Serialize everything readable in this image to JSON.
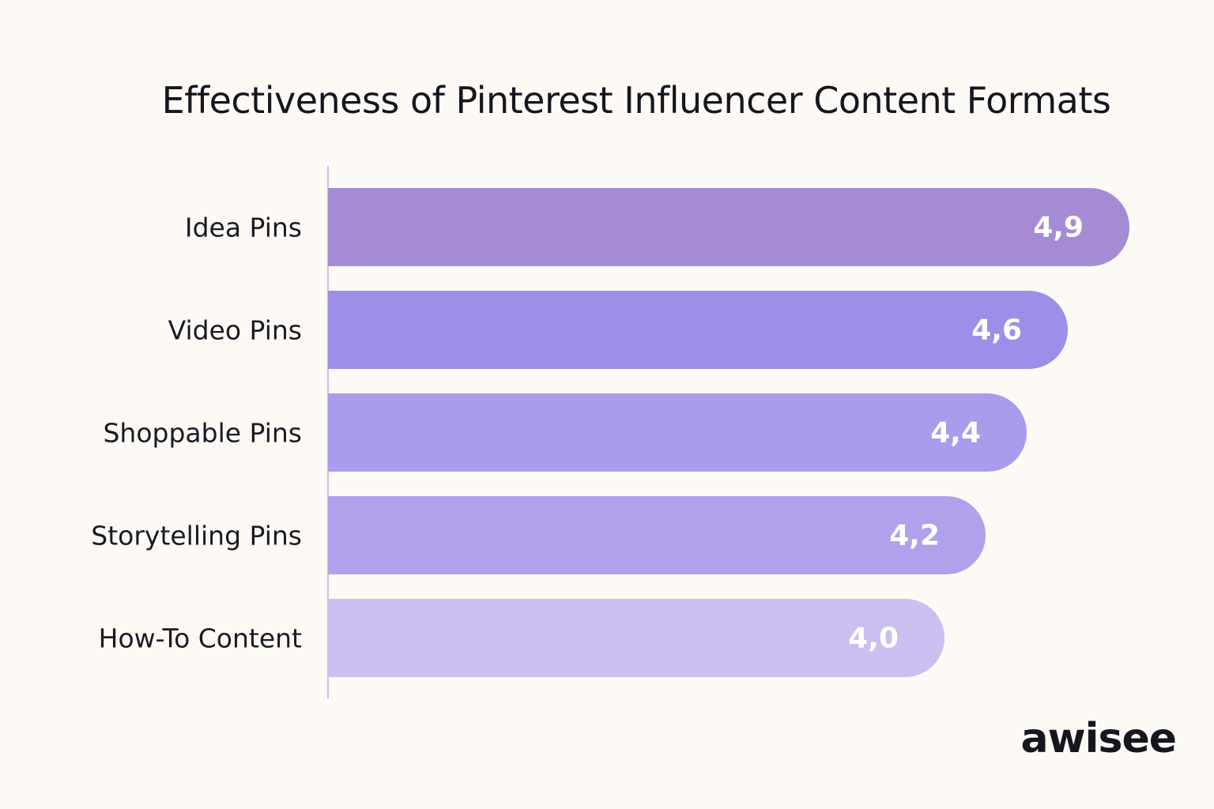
{
  "chart_data": {
    "type": "bar",
    "orientation": "horizontal",
    "title": "Effectiveness of Pinterest Influencer Content Formats",
    "categories": [
      "Idea Pins",
      "Video Pins",
      "Shoppable Pins",
      "Storytelling Pins",
      "How-To Content"
    ],
    "values": [
      4.9,
      4.6,
      4.4,
      4.2,
      4.0
    ],
    "value_labels": [
      "4,9",
      "4,6",
      "4,4",
      "4,2",
      "4,0"
    ],
    "colors": [
      "#a58bd4",
      "#9d8ee8",
      "#a99cec",
      "#b0a1ea",
      "#cbbff0"
    ],
    "xlim": [
      1,
      5
    ],
    "grid": false,
    "xlabel": "",
    "ylabel": ""
  },
  "brand": {
    "logo": "awisee"
  },
  "colors": {
    "background": "#fdfaf6",
    "text": "#16161e"
  }
}
